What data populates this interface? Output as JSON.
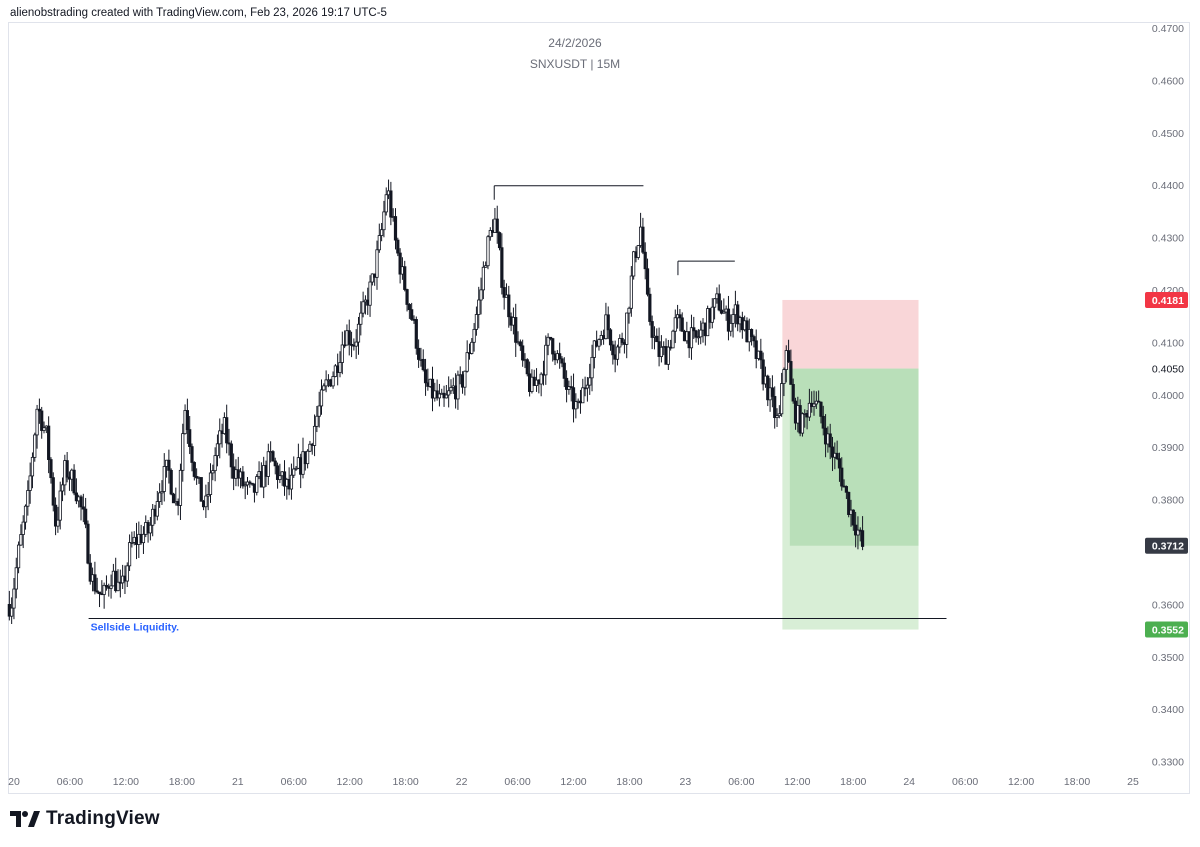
{
  "header": {
    "attribution": "alienobstrading created with TradingView.com, Feb 23, 2026 19:17 UTC-5"
  },
  "chart_title": {
    "date": "24/2/2026",
    "symbol_interval": "SNXUSDT | 15M"
  },
  "brand": {
    "name": "TradingView",
    "logo_icon": "tradingview-logo-icon"
  },
  "colors": {
    "candle": "#131722",
    "stop_zone": "#f7c4c8",
    "target_zone": "#b9dfb9",
    "target_zone_light": "#d8eed6",
    "stop_label_bg": "#f23645",
    "target_label_bg": "#4caf50",
    "current_label_bg": "#363a45",
    "annotation_text": "#2962ff",
    "axis_text": "#6a6d78"
  },
  "chart_data": {
    "type": "candlestick",
    "symbol": "SNXUSDT",
    "interval": "15M",
    "y_axis": {
      "ylim": [
        0.3275,
        0.4725
      ],
      "ticks": [
        "0.4700",
        "0.4600",
        "0.4500",
        "0.4400",
        "0.4300",
        "0.4200",
        "0.4100",
        "0.4000",
        "0.3900",
        "0.3800",
        "0.3600",
        "0.3500",
        "0.3400",
        "0.3300"
      ]
    },
    "price_labels": [
      {
        "value": 0.4181,
        "text": "0.4181",
        "role": "stop"
      },
      {
        "value": 0.405,
        "text": "0.4050",
        "role": "entry"
      },
      {
        "value": 0.3712,
        "text": "0.3712",
        "role": "current"
      },
      {
        "value": 0.3552,
        "text": "0.3552",
        "role": "target"
      }
    ],
    "x_axis": {
      "ticks": [
        {
          "t": 0,
          "label": "20"
        },
        {
          "t": 6,
          "label": "06:00"
        },
        {
          "t": 12,
          "label": "12:00"
        },
        {
          "t": 18,
          "label": "18:00"
        },
        {
          "t": 24,
          "label": "21"
        },
        {
          "t": 30,
          "label": "06:00"
        },
        {
          "t": 36,
          "label": "12:00"
        },
        {
          "t": 42,
          "label": "18:00"
        },
        {
          "t": 48,
          "label": "22"
        },
        {
          "t": 54,
          "label": "06:00"
        },
        {
          "t": 60,
          "label": "12:00"
        },
        {
          "t": 66,
          "label": "18:00"
        },
        {
          "t": 72,
          "label": "23"
        },
        {
          "t": 78,
          "label": "06:00"
        },
        {
          "t": 84,
          "label": "12:00"
        },
        {
          "t": 90,
          "label": "18:00"
        },
        {
          "t": 96,
          "label": "24"
        },
        {
          "t": 102,
          "label": "06:00"
        },
        {
          "t": 108,
          "label": "12:00"
        },
        {
          "t": 114,
          "label": "18:00"
        },
        {
          "t": 120,
          "label": "25"
        }
      ]
    },
    "price_path": [
      [
        -0.3,
        0.36
      ],
      [
        0.5,
        0.37
      ],
      [
        1.5,
        0.38
      ],
      [
        2.5,
        0.398
      ],
      [
        3.5,
        0.392
      ],
      [
        4.5,
        0.375
      ],
      [
        5.5,
        0.386
      ],
      [
        6.5,
        0.383
      ],
      [
        7.5,
        0.376
      ],
      [
        8.3,
        0.365
      ],
      [
        9.5,
        0.361
      ],
      [
        10.5,
        0.366
      ],
      [
        11.5,
        0.362
      ],
      [
        12.5,
        0.371
      ],
      [
        13.5,
        0.373
      ],
      [
        14.5,
        0.374
      ],
      [
        15.5,
        0.382
      ],
      [
        16.5,
        0.386
      ],
      [
        17.5,
        0.378
      ],
      [
        18.3,
        0.398
      ],
      [
        19.5,
        0.384
      ],
      [
        20.5,
        0.378
      ],
      [
        21.5,
        0.388
      ],
      [
        22.5,
        0.394
      ],
      [
        23.5,
        0.386
      ],
      [
        24.5,
        0.383
      ],
      [
        25.5,
        0.381
      ],
      [
        26.5,
        0.384
      ],
      [
        27.5,
        0.388
      ],
      [
        28.5,
        0.384
      ],
      [
        29.5,
        0.382
      ],
      [
        30.5,
        0.386
      ],
      [
        31.5,
        0.389
      ],
      [
        32.5,
        0.396
      ],
      [
        33.5,
        0.402
      ],
      [
        34.5,
        0.405
      ],
      [
        35.5,
        0.412
      ],
      [
        36.5,
        0.41
      ],
      [
        37.5,
        0.416
      ],
      [
        38.5,
        0.422
      ],
      [
        39.5,
        0.432
      ],
      [
        40.0,
        0.44
      ],
      [
        41.0,
        0.428
      ],
      [
        42.0,
        0.42
      ],
      [
        43.0,
        0.412
      ],
      [
        44.0,
        0.402
      ],
      [
        45.0,
        0.4
      ],
      [
        46.0,
        0.398
      ],
      [
        47.0,
        0.401
      ],
      [
        48.0,
        0.402
      ],
      [
        49.0,
        0.41
      ],
      [
        50.0,
        0.419
      ],
      [
        50.5,
        0.426
      ],
      [
        51.5,
        0.434
      ],
      [
        52.5,
        0.42
      ],
      [
        53.5,
        0.414
      ],
      [
        54.5,
        0.406
      ],
      [
        55.5,
        0.401
      ],
      [
        56.5,
        0.404
      ],
      [
        57.5,
        0.411
      ],
      [
        58.5,
        0.406
      ],
      [
        59.5,
        0.4
      ],
      [
        60.5,
        0.397
      ],
      [
        61.5,
        0.404
      ],
      [
        62.5,
        0.41
      ],
      [
        63.5,
        0.414
      ],
      [
        64.5,
        0.408
      ],
      [
        65.5,
        0.412
      ],
      [
        66.5,
        0.426
      ],
      [
        67.2,
        0.432
      ],
      [
        68.0,
        0.416
      ],
      [
        69.0,
        0.408
      ],
      [
        70.0,
        0.408
      ],
      [
        71.0,
        0.414
      ],
      [
        72.0,
        0.412
      ],
      [
        73.0,
        0.41
      ],
      [
        74.0,
        0.413
      ],
      [
        75.5,
        0.418
      ],
      [
        76.5,
        0.414
      ],
      [
        77.5,
        0.416
      ],
      [
        78.5,
        0.412
      ],
      [
        79.5,
        0.408
      ],
      [
        80.5,
        0.403
      ],
      [
        81.3,
        0.398
      ],
      [
        82.0,
        0.394
      ],
      [
        82.8,
        0.41
      ],
      [
        83.5,
        0.398
      ],
      [
        84.5,
        0.394
      ],
      [
        85.5,
        0.4
      ],
      [
        86.5,
        0.396
      ],
      [
        87.5,
        0.39
      ],
      [
        88.5,
        0.386
      ],
      [
        89.5,
        0.379
      ],
      [
        90.5,
        0.374
      ],
      [
        91.0,
        0.371
      ]
    ],
    "candle_count": 370,
    "candle_span": [
      -0.5,
      91.0
    ],
    "annotations": [
      {
        "text": "Sellside Liquidity.",
        "type": "horizontal_line",
        "price": 0.3573,
        "t_start": 8,
        "t_end": 100
      },
      {
        "type": "swing_high_line",
        "price": 0.4399,
        "t_start": 51.5,
        "t_end": 67.5
      },
      {
        "type": "swing_high_line",
        "price": 0.4255,
        "t_start": 71.2,
        "t_end": 77.3
      }
    ],
    "position": {
      "type": "short",
      "entry": 0.405,
      "stop": 0.4181,
      "target": 0.3552,
      "current": 0.3712,
      "t_start": 82.4,
      "t_end": 97.0,
      "t_now": 83.2
    }
  }
}
